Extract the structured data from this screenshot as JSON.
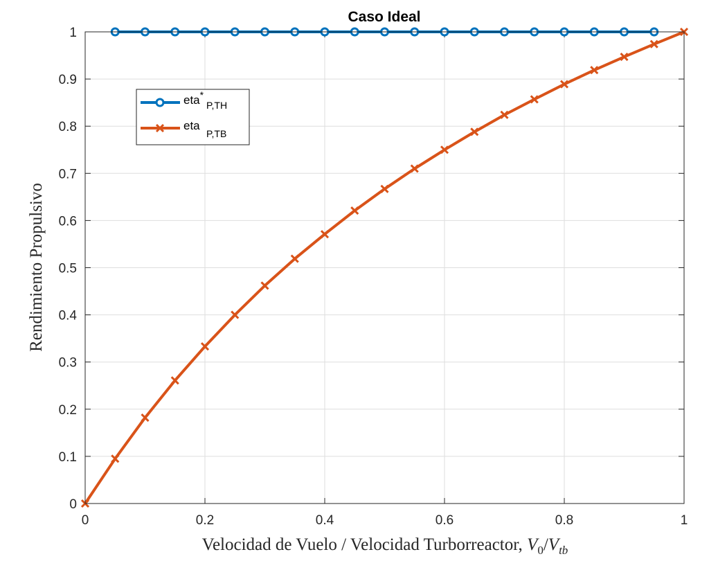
{
  "chart_data": {
    "type": "line",
    "title": "Caso Ideal",
    "xlabel": "Velocidad de Vuelo / Velocidad Turborreactor, V_0/V_tb",
    "xlabel_parts": {
      "text": "Velocidad de Vuelo / Velocidad Turborreactor, ",
      "v0": "V",
      "v0_sub": "0",
      "slash": "/",
      "vtb": "V",
      "vtb_sub": "tb"
    },
    "ylabel": "Rendimiento Propulsivo",
    "xlim": [
      0,
      1
    ],
    "ylim": [
      0,
      1
    ],
    "xticks": [
      0,
      0.2,
      0.4,
      0.6,
      0.8,
      1
    ],
    "xtick_labels": [
      "0",
      "0.2",
      "0.4",
      "0.6",
      "0.8",
      "1"
    ],
    "yticks": [
      0,
      0.1,
      0.2,
      0.3,
      0.4,
      0.5,
      0.6,
      0.7,
      0.8,
      0.9,
      1
    ],
    "ytick_labels": [
      "0",
      "0.1",
      "0.2",
      "0.3",
      "0.4",
      "0.5",
      "0.6",
      "0.7",
      "0.8",
      "0.9",
      "1"
    ],
    "grid": true,
    "legend_position": "upper-left",
    "series": [
      {
        "name": "eta*_P,TH",
        "legend": {
          "base": "eta",
          "sup": "*",
          "sub": "P,TH"
        },
        "color": "#0072BD",
        "marker": "circle",
        "x": [
          0.05,
          0.1,
          0.15,
          0.2,
          0.25,
          0.3,
          0.35,
          0.4,
          0.45,
          0.5,
          0.55,
          0.6,
          0.65,
          0.7,
          0.75,
          0.8,
          0.85,
          0.9,
          0.95
        ],
        "y": [
          1,
          1,
          1,
          1,
          1,
          1,
          1,
          1,
          1,
          1,
          1,
          1,
          1,
          1,
          1,
          1,
          1,
          1,
          1
        ]
      },
      {
        "name": "eta_P,TB",
        "legend": {
          "base": "eta",
          "sup": "",
          "sub": "P,TB"
        },
        "color": "#D95319",
        "marker": "x",
        "x": [
          0,
          0.05,
          0.1,
          0.15,
          0.2,
          0.25,
          0.3,
          0.35,
          0.4,
          0.45,
          0.5,
          0.55,
          0.6,
          0.65,
          0.7,
          0.75,
          0.8,
          0.85,
          0.9,
          0.95,
          1
        ],
        "y": [
          0,
          0.095,
          0.182,
          0.261,
          0.333,
          0.4,
          0.462,
          0.519,
          0.571,
          0.621,
          0.667,
          0.71,
          0.75,
          0.788,
          0.824,
          0.857,
          0.889,
          0.919,
          0.947,
          0.974,
          1
        ]
      }
    ]
  }
}
